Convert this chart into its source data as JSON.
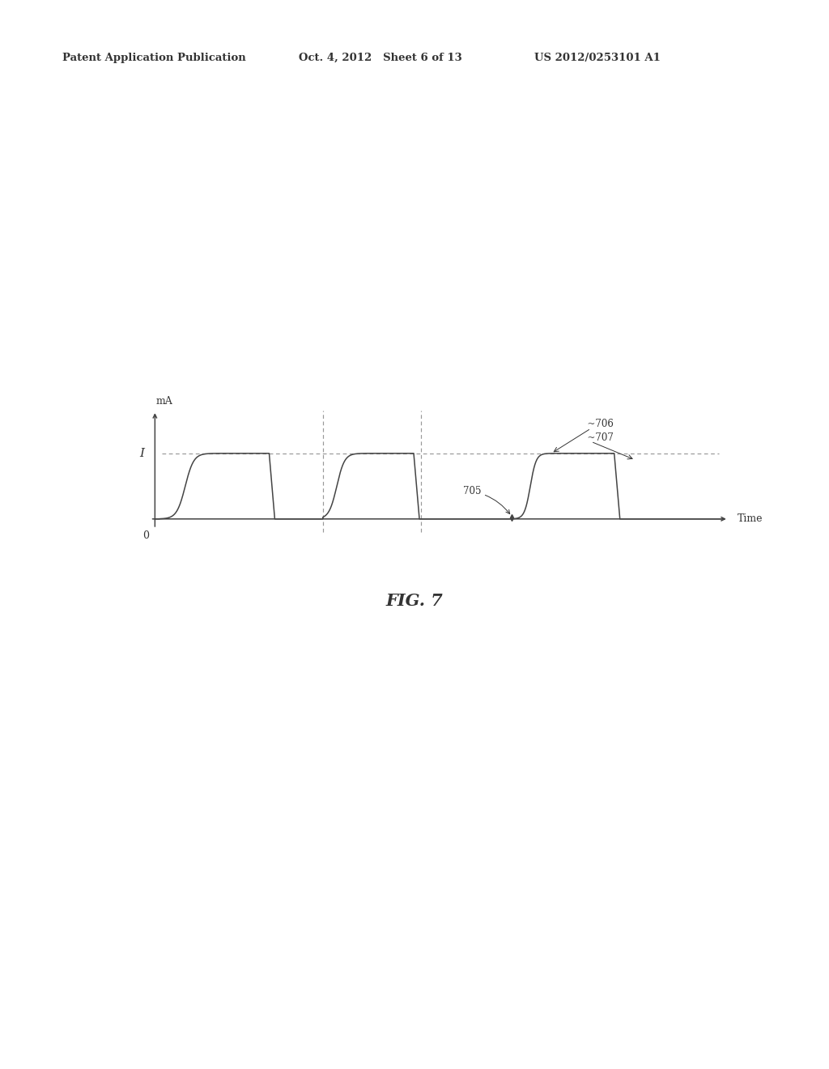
{
  "background_color": "#ffffff",
  "header_left": "Patent Application Publication",
  "header_mid": "Oct. 4, 2012   Sheet 6 of 13",
  "header_right": "US 2012/0253101 A1",
  "figure_caption": "FIG. 7",
  "ylabel_mA": "mA",
  "xlabel_time": "Time",
  "y_label_I": "I",
  "x_zero_label": "0",
  "label_705": "705",
  "label_706": "706",
  "label_707": "707",
  "current_level": 1.0,
  "signal_color": "#444444",
  "dash_color": "#999999",
  "axis_color": "#444444",
  "text_color": "#333333"
}
